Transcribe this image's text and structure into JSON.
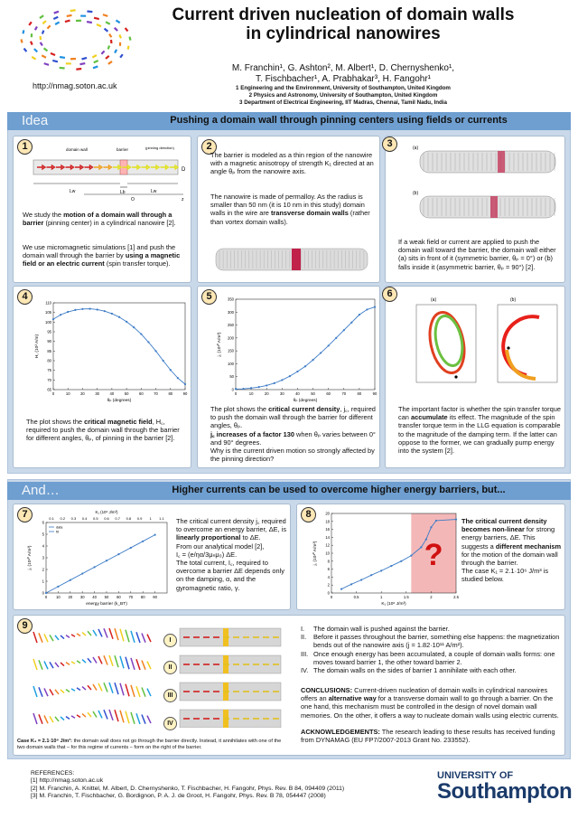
{
  "header": {
    "title_line1": "Current driven nucleation of domain walls",
    "title_line2": "in cylindrical nanowires",
    "authors_line1": "M. Franchin¹, G. Ashton², M. Albert¹, D. Chernyshenko¹,",
    "authors_line2": "T. Fischbacher¹, A. Prabhakar³, H. Fangohr¹",
    "affil1": "1 Engineering and the Environment, University of Southampton, United Kingdom",
    "affil2": "2 Physics and Astronomy, University of Southampton, United Kingdom",
    "affil3": "3 Department of Electrical Engineering, IIT Madras, Chennai, Tamil Nadu, India",
    "url": "http://nmag.soton.ac.uk"
  },
  "section1": {
    "tag": "Idea",
    "heading": "Pushing a domain wall through pinning centers using fields or currents"
  },
  "section2": {
    "tag": "And…",
    "heading": "Higher currents can be used to overcome higher energy barriers, but..."
  },
  "box1": {
    "num": "1",
    "fig_labels": {
      "dw": "domain wall",
      "barrier": "barrier",
      "pinning": "(pinning direction)",
      "D": "D",
      "Lw": "Lw",
      "Lb": "Lb",
      "O": "O",
      "z": "z"
    },
    "t1": "We study the",
    "t1b": "motion of a domain wall through a barrier",
    "t1c": "(pinning center) in a cylindrical nanowire [2].",
    "t2": "We use micromagnetic simulations [1] and push the domain wall through the barrier by",
    "t2b": "using a magnetic field or an electric current",
    "t2c": "(spin transfer torque)."
  },
  "box2": {
    "num": "2",
    "t1": "The barrier is modeled as a thin region of the nanowire with a magnetic anisotropy of strength K₁ directed at an angle θₚ from the nanowire axis.",
    "t2": "The nanowire is made of permalloy. As the radius is smaller than 50 nm (it is 10 nm in this study) domain walls in the wire are",
    "t2b": "transverse domain walls",
    "t2c": "(rather than vortex domain walls)."
  },
  "box3": {
    "num": "3",
    "fig_a": "(a)",
    "fig_b": "(b)",
    "t1": "If a weak field or current are applied to push the domain wall toward the barrier, the domain wall either (a) sits in front of it (symmetric barrier, θₚ = 0°) or (b) falls inside it (asymmetric barrier, θₚ = 90°) [2]."
  },
  "box4": {
    "num": "4",
    "t1": "The plot shows the",
    "t1b": "critical magnetic field",
    "t1c": ", H꜀, required to push the domain wall through the barrier for different angles, θₚ, of pinning in the barrier [2]."
  },
  "box5": {
    "num": "5",
    "t1": "The plot shows the",
    "t1b": "critical current density",
    "t1c": ", j꜀, required to push the domain wall through the barrier for different angles, θₚ.",
    "t2b": "j꜀ increases of a factor 130",
    "t2c": "when θₚ varies between 0° and 90° degrees.",
    "t3": "Why is the current driven motion so strongly affected by the pinning direction?"
  },
  "box6": {
    "num": "6",
    "fig_a": "(a)",
    "fig_b": "(b)",
    "t1": "The important factor is whether the spin transfer torque can",
    "t1b": "accumulate",
    "t1c": "its effect. The magnitude of the spin transfer torque term in the LLG equation is comparable to the magnitude of the damping term. If the latter can oppose to the former, we can gradually pump energy into the system [2]."
  },
  "box7": {
    "num": "7",
    "t1": "The critical current density j꜀ required to overcome an energy barrier, ΔE, is",
    "t1b": "linearly proportional",
    "t1c": "to ΔE.",
    "t2": "From our analytical model [2],",
    "t3": "I꜀ = (e/ηα/3μₙμ₀) ΔE.",
    "t4": "The total current, I꜀, required to overcome a barrier ΔE depends only on the damping, α, and the gyromagnetic ratio, γ."
  },
  "box8": {
    "num": "8",
    "t1b": "The critical current density becomes non-linear",
    "t1c": "for strong energy barriers, ΔE. This suggests a",
    "t2b": "different mechanism",
    "t2c": "for the motion of the domain wall through the barrier.",
    "t3": "The case K₁ = 2.1·10⁶ J/m³ is studied below."
  },
  "box9": {
    "num": "9",
    "romans": [
      "I",
      "II",
      "III",
      "IV"
    ],
    "caption_b": "Case K₁ = 2.1·10⁶ J/m³:",
    "caption": "the domain wall does not go through the barrier directly. Instead, it annihilates with one of the two domain walls that – for this regime of currents – form on the right of the barrier.",
    "list": [
      "The domain wall is pushed against the barrier.",
      "Before it passes throughout the barrier, something else happens: the magnetization bends out of the nanowire axis (j = 1.82·10¹¹ A/m²).",
      "Once enough energy has been accumulated, a couple of domain walls forms: one moves toward barrier 1, the other toward barrier 2.",
      "The domain walls on the sides of barrier 1 annihilate with each other."
    ],
    "list_marks": [
      "I.",
      "II.",
      "III.",
      "IV."
    ],
    "concl_b": "CONCLUSIONS:",
    "concl": "Current-driven nucleation of domain walls in cylindrical nanowires offers an",
    "concl_b2": "alternative way",
    "concl2": "for a transverse domain wall to go through a barrier. On the one hand, this mechanism must be controlled in the design of novel domain wall memories. On the other, it offers a way to nucleate domain walls using electric currents.",
    "ack_b": "ACKNOWLEDGEMENTS:",
    "ack": "The research leading to these results has received funding from DYNAMAG (EU FP7/2007-2013 Grant No. 233552)."
  },
  "references": {
    "title": "REFERENCES:",
    "items": [
      "[1] http://nmag.soton.ac.uk",
      "[2] M. Franchin, A. Knittel, M. Albert, D. Chernyshenko, T. Fischbacher, H. Fangohr, Phys. Rev. B 84, 094409 (2011)",
      "[3] M. Franchin, T. Fischbacher, G. Bordignon, P. A. J. de Groot, H. Fangohr, Phys. Rev. B 78, 054447 (2008)"
    ]
  },
  "logo": {
    "line1": "UNIVERSITY OF",
    "line2": "Southampton"
  },
  "chart_data": [
    {
      "type": "line",
      "id": "box4",
      "xlabel": "θₚ (degrees)",
      "ylabel": "H꜀ (10³ A/m)",
      "x": [
        0,
        5,
        10,
        15,
        20,
        25,
        30,
        35,
        40,
        45,
        50,
        55,
        60,
        65,
        70,
        75,
        80,
        85,
        90
      ],
      "values": [
        101.5,
        103.8,
        105.3,
        106.3,
        106.8,
        106.9,
        106.5,
        105.7,
        104.4,
        102.6,
        100.2,
        97.3,
        93.8,
        89.6,
        85.0,
        80.0,
        75.2,
        71.0,
        67.8
      ],
      "xlim": [
        0,
        90
      ],
      "ylim": [
        65,
        110
      ],
      "xticks": [
        0,
        10,
        20,
        30,
        40,
        50,
        60,
        70,
        80,
        90
      ],
      "yticks": [
        65,
        70,
        75,
        80,
        85,
        90,
        95,
        100,
        105,
        110
      ]
    },
    {
      "type": "line",
      "id": "box5",
      "xlabel": "θₚ (degrees)",
      "ylabel": "j꜀ (10¹⁰ A/m²)",
      "x": [
        0,
        5,
        10,
        15,
        20,
        25,
        30,
        35,
        40,
        45,
        50,
        55,
        60,
        65,
        70,
        75,
        80,
        85,
        90
      ],
      "values": [
        2.5,
        3,
        6,
        10,
        16,
        25,
        37,
        52,
        70,
        90,
        115,
        142,
        170,
        200,
        230,
        260,
        290,
        310,
        320
      ],
      "xlim": [
        0,
        90
      ],
      "ylim": [
        0,
        350
      ],
      "xticks": [
        0,
        10,
        20,
        30,
        40,
        50,
        60,
        70,
        80,
        90
      ],
      "yticks": [
        0,
        50,
        100,
        150,
        200,
        250,
        300,
        350
      ]
    },
    {
      "type": "line",
      "id": "box7",
      "xlabel": "energy barrier (k_BT)",
      "ylabel": "j꜀ (10¹⁰ A/m²)",
      "x2label": "K₁ (10⁶ J/m³)",
      "x": [
        0,
        10,
        20,
        30,
        40,
        50,
        60,
        70,
        80,
        90
      ],
      "values": [
        0.0,
        0.55,
        1.1,
        1.65,
        2.2,
        2.75,
        3.3,
        3.85,
        4.4,
        4.95
      ],
      "xlim": [
        0,
        100
      ],
      "ylim": [
        0,
        6
      ],
      "xticks": [
        0,
        10,
        20,
        30,
        40,
        50,
        60,
        70,
        80,
        90
      ],
      "yticks": [
        0,
        1,
        2,
        3,
        4,
        5,
        6
      ],
      "x2ticks": [
        "0.1",
        "0.2",
        "0.3",
        "0.4",
        "0.5",
        "0.6",
        "0.7",
        "0.8",
        "0.9",
        "1",
        "1.1"
      ],
      "legend": [
        "data",
        "fit"
      ]
    },
    {
      "type": "line",
      "id": "box8",
      "xlabel": "K₁ (10⁶ J/m³)",
      "ylabel": "j꜀ (10¹⁰ A/m²)",
      "x": [
        0.2,
        0.4,
        0.6,
        0.8,
        1.0,
        1.2,
        1.4,
        1.6,
        1.8,
        1.9,
        2.0,
        2.1,
        2.5
      ],
      "values": [
        1.0,
        2.2,
        3.3,
        4.5,
        5.6,
        6.8,
        8.0,
        9.4,
        11.5,
        13.5,
        16.5,
        18.2,
        18.5
      ],
      "xlim": [
        0.0,
        2.5
      ],
      "ylim": [
        0,
        20
      ],
      "xticks": [
        0.0,
        0.5,
        1.0,
        1.5,
        2.0,
        2.5
      ],
      "yticks": [
        0,
        2,
        4,
        6,
        8,
        10,
        12,
        14,
        16,
        18,
        20
      ],
      "annotation": "?"
    }
  ]
}
